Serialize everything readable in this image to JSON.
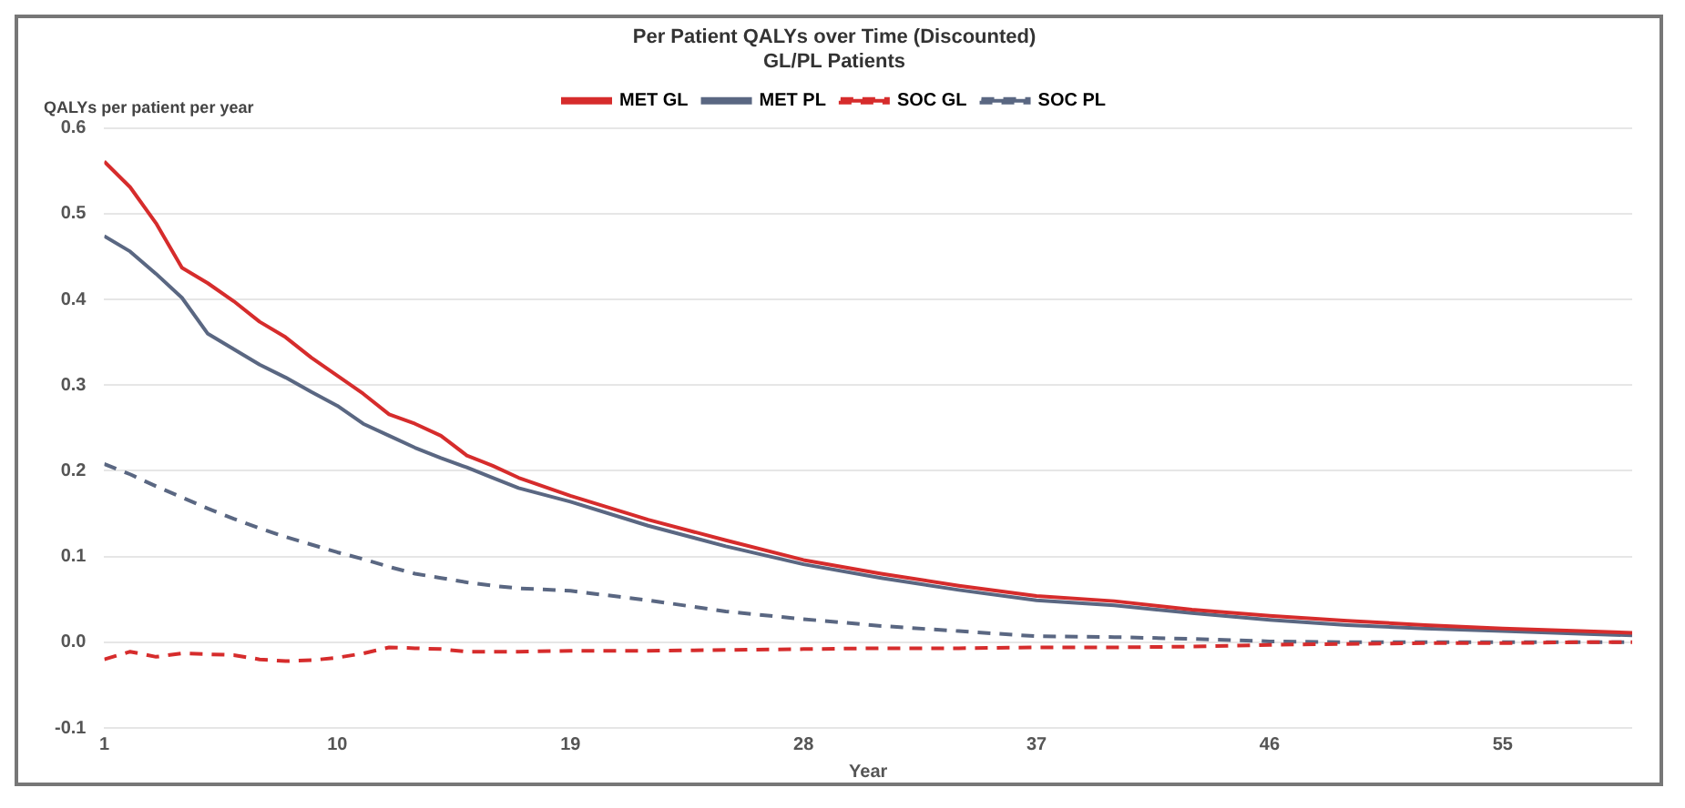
{
  "chart_data": {
    "type": "line",
    "title": "Per Patient QALYs over Time (Discounted)",
    "subtitle": "GL/PL Patients",
    "xlabel": "Year",
    "ylabel": "QALYs per patient per year",
    "x": [
      1,
      2,
      3,
      4,
      5,
      6,
      7,
      8,
      9,
      10,
      11,
      12,
      13,
      14,
      15,
      16,
      17,
      19,
      22,
      25,
      28,
      31,
      34,
      37,
      40,
      43,
      46,
      49,
      52,
      55,
      58,
      60
    ],
    "series": [
      {
        "name": "MET GL",
        "color": "#d62c2c",
        "line_style": "solid",
        "values": [
          0.561,
          0.531,
          0.489,
          0.437,
          0.419,
          0.398,
          0.374,
          0.356,
          0.332,
          0.311,
          0.29,
          0.266,
          0.255,
          0.241,
          0.218,
          0.206,
          0.192,
          0.171,
          0.143,
          0.119,
          0.096,
          0.08,
          0.066,
          0.054,
          0.048,
          0.038,
          0.031,
          0.025,
          0.02,
          0.016,
          0.013,
          0.011
        ]
      },
      {
        "name": "MET PL",
        "color": "#5a6782",
        "line_style": "solid",
        "values": [
          0.474,
          0.456,
          0.43,
          0.402,
          0.36,
          0.342,
          0.324,
          0.309,
          0.292,
          0.276,
          0.255,
          0.241,
          0.227,
          0.215,
          0.204,
          0.192,
          0.18,
          0.164,
          0.136,
          0.112,
          0.091,
          0.075,
          0.061,
          0.049,
          0.043,
          0.034,
          0.026,
          0.02,
          0.016,
          0.013,
          0.01,
          0.008
        ]
      },
      {
        "name": "SOC GL",
        "color": "#d62c2c",
        "line_style": "dashed",
        "values": [
          -0.02,
          -0.011,
          -0.017,
          -0.013,
          -0.014,
          -0.015,
          -0.02,
          -0.022,
          -0.021,
          -0.018,
          -0.013,
          -0.006,
          -0.007,
          -0.008,
          -0.011,
          -0.011,
          -0.011,
          -0.01,
          -0.01,
          -0.009,
          -0.008,
          -0.007,
          -0.007,
          -0.006,
          -0.006,
          -0.005,
          -0.003,
          -0.002,
          -0.001,
          -0.001,
          0.0,
          0.0
        ]
      },
      {
        "name": "SOC PL",
        "color": "#5a6782",
        "line_style": "dashed",
        "values": [
          0.208,
          0.196,
          0.182,
          0.169,
          0.156,
          0.144,
          0.133,
          0.123,
          0.114,
          0.105,
          0.097,
          0.088,
          0.08,
          0.075,
          0.07,
          0.066,
          0.063,
          0.06,
          0.049,
          0.036,
          0.027,
          0.019,
          0.013,
          0.007,
          0.006,
          0.004,
          0.001,
          0.0,
          0.0,
          0.0,
          0.0,
          0.0
        ]
      }
    ],
    "xlim": [
      1,
      60
    ],
    "xticks": [
      1,
      10,
      19,
      28,
      37,
      46,
      55
    ],
    "ylim": [
      -0.1,
      0.6
    ],
    "yticks": [
      -0.1,
      {
        "value": 0,
        "label": "0.0"
      },
      0.1,
      0.2,
      0.3,
      0.4,
      0.5,
      0.6
    ],
    "grid": "y",
    "legend": "top",
    "marker": "none"
  }
}
